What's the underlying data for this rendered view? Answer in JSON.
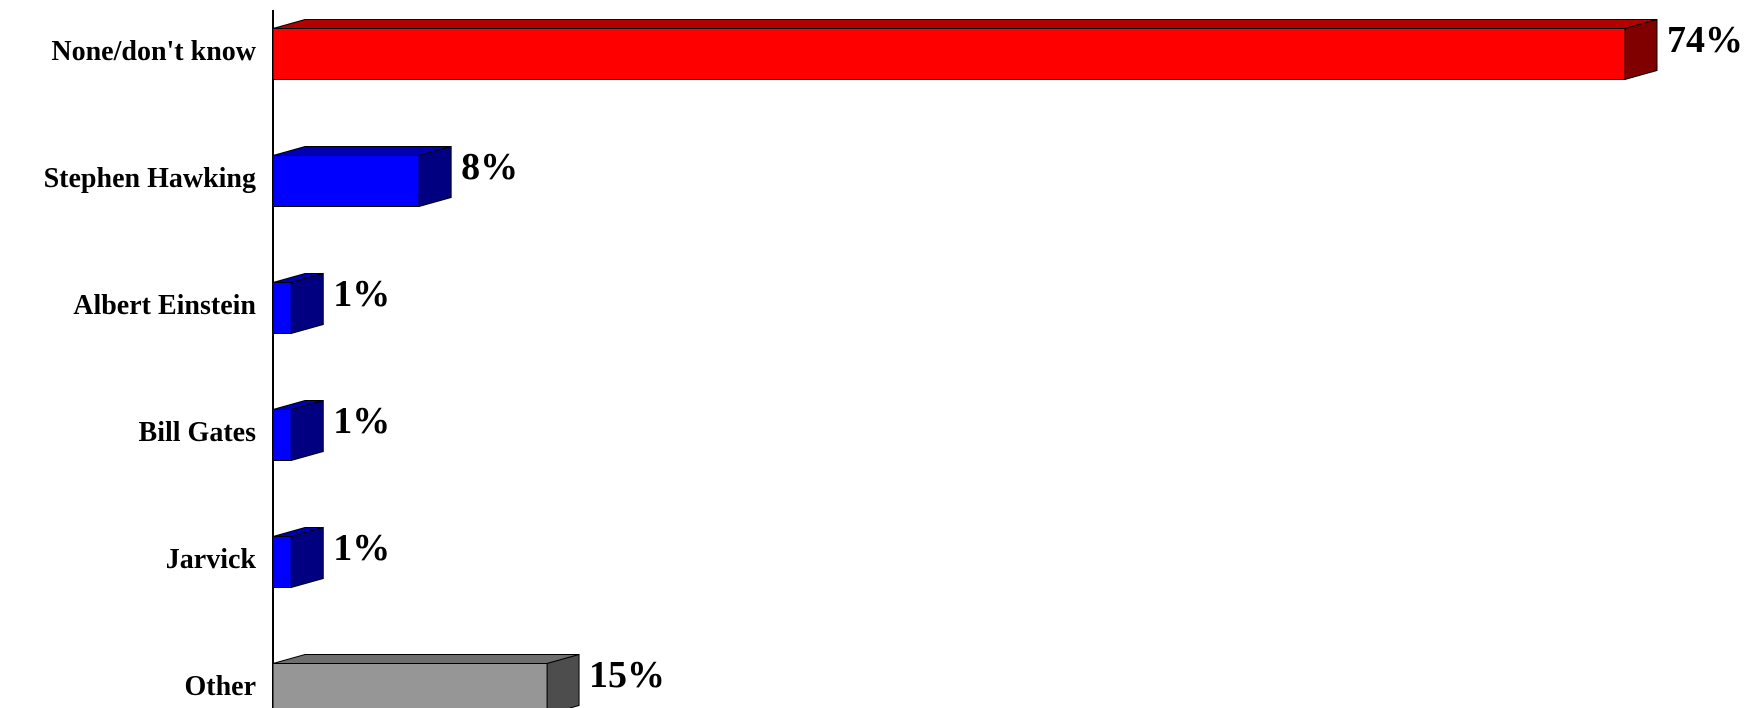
{
  "chart_data": {
    "type": "bar",
    "orientation": "horizontal",
    "style": "3d",
    "categories": [
      "None/don't know",
      "Stephen Hawking",
      "Albert Einstein",
      "Bill Gates",
      "Jarvick",
      "Other"
    ],
    "values": [
      74,
      8,
      1,
      1,
      1,
      15
    ],
    "value_labels": [
      "74%",
      "8%",
      "1%",
      "1%",
      "1%",
      "15%"
    ],
    "xlim": [
      0,
      74
    ],
    "grid": false,
    "legend": "none",
    "bar_colors": [
      "#ff0000",
      "#0000ff",
      "#0000ff",
      "#0000ff",
      "#0000ff",
      "#969696"
    ],
    "side_colors": [
      "#800000",
      "#000080",
      "#000080",
      "#000080",
      "#000080",
      "#4d4d4d"
    ],
    "top_colors": [
      "#b30000",
      "#0000b3",
      "#0000b3",
      "#0000b3",
      "#0000b3",
      "#6e6e6e"
    ]
  }
}
